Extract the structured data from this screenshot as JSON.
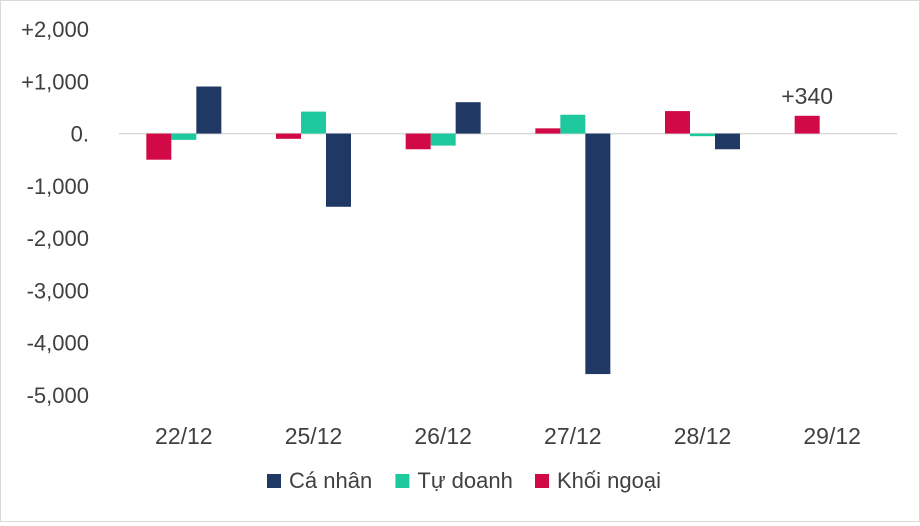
{
  "chart_data": {
    "type": "bar",
    "categories": [
      "22/12",
      "25/12",
      "26/12",
      "27/12",
      "28/12",
      "29/12"
    ],
    "series": [
      {
        "name": "Cá nhân",
        "color": "#203864",
        "values": [
          900,
          -1400,
          600,
          -4600,
          -300,
          0
        ]
      },
      {
        "name": "Tự doanh",
        "color": "#1ec99d",
        "values": [
          -120,
          420,
          -230,
          360,
          -50,
          0
        ]
      },
      {
        "name": "Khối ngoại",
        "color": "#d10a47",
        "values": [
          -500,
          -100,
          -300,
          100,
          430,
          340
        ]
      }
    ],
    "ylim": [
      -5000,
      2000
    ],
    "yticks": [
      {
        "value": 2000,
        "label": "+2,000"
      },
      {
        "value": 1000,
        "label": "+1,000"
      },
      {
        "value": 0,
        "label": "0."
      },
      {
        "value": -1000,
        "label": "-1,000"
      },
      {
        "value": -2000,
        "label": "-2,000"
      },
      {
        "value": -3000,
        "label": "-3,000"
      },
      {
        "value": -4000,
        "label": "-4,000"
      },
      {
        "value": -5000,
        "label": "-5,000"
      }
    ],
    "annotations": [
      {
        "category": "29/12",
        "series": "Khối ngoại",
        "text": "+340"
      }
    ],
    "legend_position": "bottom",
    "grid": false,
    "title": "",
    "xlabel": "",
    "ylabel": ""
  }
}
